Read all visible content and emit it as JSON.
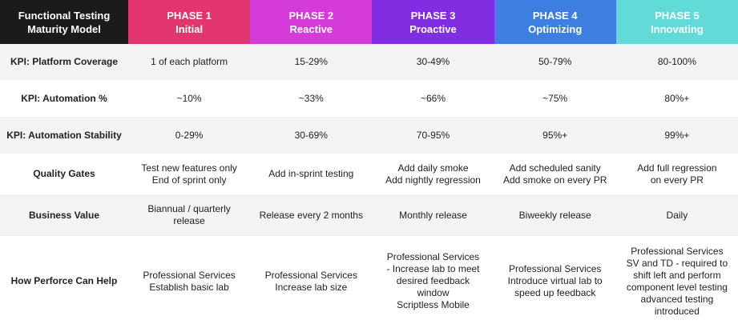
{
  "header": {
    "title": [
      "Functional Testing",
      "Maturity Model"
    ],
    "phases": [
      {
        "number": "PHASE 1",
        "name": "Initial",
        "color": "#e2356e"
      },
      {
        "number": "PHASE 2",
        "name": "Reactive",
        "color": "#d43bd8"
      },
      {
        "number": "PHASE 3",
        "name": "Proactive",
        "color": "#812ee3"
      },
      {
        "number": "PHASE 4",
        "name": "Optimizing",
        "color": "#3c7fe1"
      },
      {
        "number": "PHASE 5",
        "name": "Innovating",
        "color": "#62dbd8"
      }
    ]
  },
  "table": {
    "rows": [
      {
        "label": "KPI: Platform Coverage",
        "cells": [
          [
            "1 of each platform"
          ],
          [
            "15-29%"
          ],
          [
            "30-49%"
          ],
          [
            "50-79%"
          ],
          [
            "80-100%"
          ]
        ]
      },
      {
        "label": "KPI: Automation %",
        "cells": [
          [
            "~10%"
          ],
          [
            "~33%"
          ],
          [
            "~66%"
          ],
          [
            "~75%"
          ],
          [
            "80%+"
          ]
        ]
      },
      {
        "label": "KPI: Automation Stability",
        "cells": [
          [
            "0-29%"
          ],
          [
            "30-69%"
          ],
          [
            "70-95%"
          ],
          [
            "95%+"
          ],
          [
            "99%+"
          ]
        ]
      },
      {
        "label": "Quality Gates",
        "cells": [
          [
            "Test new features only",
            "End of sprint only"
          ],
          [
            "Add in-sprint testing"
          ],
          [
            "Add daily smoke",
            "Add nightly regression"
          ],
          [
            "Add scheduled sanity",
            "Add smoke on every PR"
          ],
          [
            "Add full regression",
            "on every PR"
          ]
        ]
      },
      {
        "label": "Business Value",
        "cells": [
          [
            "Biannual / quarterly",
            "release"
          ],
          [
            "Release every 2 months"
          ],
          [
            "Monthly release"
          ],
          [
            "Biweekly release"
          ],
          [
            "Daily"
          ]
        ]
      },
      {
        "label": "How Perforce Can Help",
        "cells": [
          [
            "Professional Services",
            "Establish basic lab"
          ],
          [
            "Professional Services",
            "Increase lab size"
          ],
          [
            "Professional Services",
            "- Increase lab to meet",
            "desired feedback",
            "window",
            "Scriptless Mobile"
          ],
          [
            "Professional Services",
            "Introduce virtual lab to",
            "speed up feedback"
          ],
          [
            "Professional Services",
            "SV and TD - required to",
            "shift left and perform",
            "component level testing",
            "advanced testing",
            "introduced"
          ]
        ]
      }
    ]
  }
}
